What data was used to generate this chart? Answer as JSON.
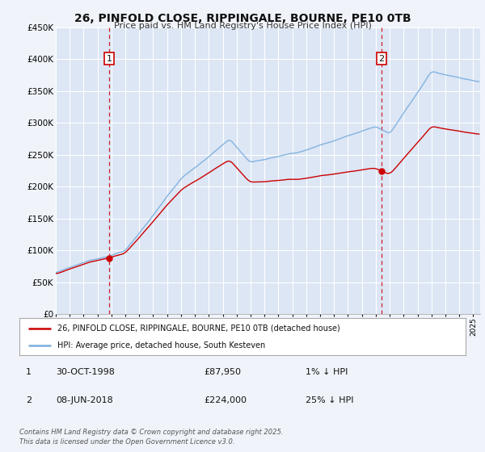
{
  "title": "26, PINFOLD CLOSE, RIPPINGALE, BOURNE, PE10 0TB",
  "subtitle": "Price paid vs. HM Land Registry's House Price Index (HPI)",
  "background_color": "#f0f4fa",
  "plot_bg_color": "#dce6f5",
  "grid_color": "#ffffff",
  "transaction1_date_x": 1998.833,
  "transaction1_price": 87950,
  "transaction2_date_x": 2018.417,
  "transaction2_price": 224000,
  "legend1": "26, PINFOLD CLOSE, RIPPINGALE, BOURNE, PE10 0TB (detached house)",
  "legend2": "HPI: Average price, detached house, South Kesteven",
  "table1_date": "30-OCT-1998",
  "table1_price": "£87,950",
  "table1_hpi": "1% ↓ HPI",
  "table2_date": "08-JUN-2018",
  "table2_price": "£224,000",
  "table2_hpi": "25% ↓ HPI",
  "footer": "Contains HM Land Registry data © Crown copyright and database right 2025.\nThis data is licensed under the Open Government Licence v3.0.",
  "ylim": [
    0,
    450000
  ],
  "yticks": [
    0,
    50000,
    100000,
    150000,
    200000,
    250000,
    300000,
    350000,
    400000,
    450000
  ],
  "red_line_color": "#cc0000",
  "blue_line_color": "#7aaddd",
  "vline_color": "#cc0000",
  "marker_color": "#cc0000",
  "xlim_start": 1995.0,
  "xlim_end": 2025.5
}
